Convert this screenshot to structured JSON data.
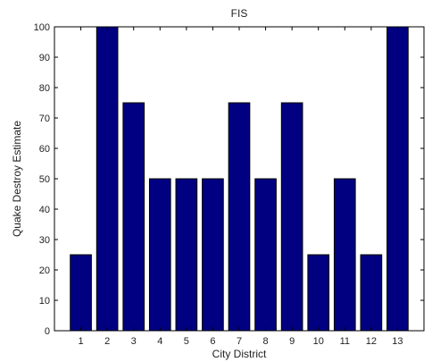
{
  "chart_data": {
    "type": "bar",
    "title": "FIS",
    "xlabel": "City District",
    "ylabel": "Quake Destroy Estimate",
    "categories": [
      "1",
      "2",
      "3",
      "4",
      "5",
      "6",
      "7",
      "8",
      "9",
      "10",
      "11",
      "12",
      "13"
    ],
    "values": [
      25,
      100,
      75,
      50,
      50,
      50,
      75,
      50,
      75,
      25,
      50,
      25,
      100
    ],
    "ylim": [
      0,
      100
    ],
    "yticks": [
      0,
      10,
      20,
      30,
      40,
      50,
      60,
      70,
      80,
      90,
      100
    ],
    "grid": false,
    "legend": "none",
    "colors": {
      "bar_fill": "#000080",
      "bar_edge": "#000000",
      "axis": "#000000",
      "background": "#ffffff"
    }
  }
}
